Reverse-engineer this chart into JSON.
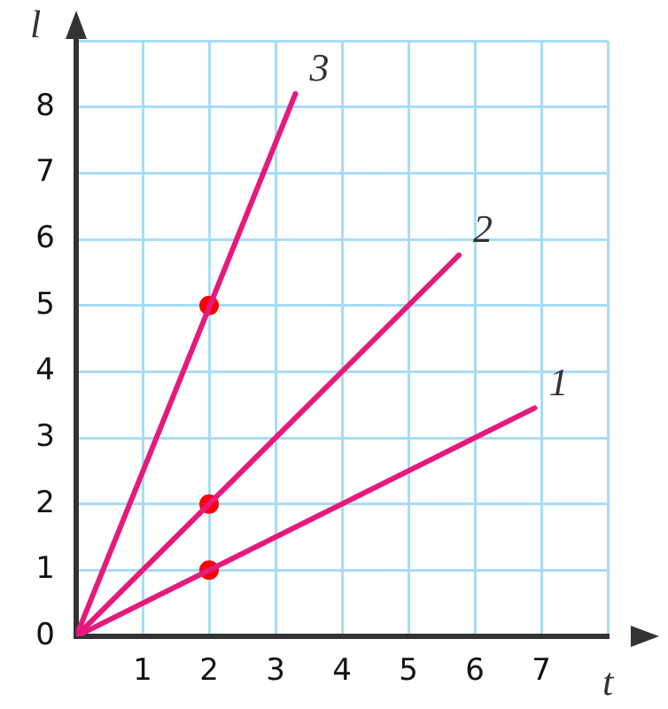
{
  "chart_data": {
    "type": "line",
    "xlabel": "t",
    "ylabel": "l",
    "xlim": [
      0,
      8
    ],
    "ylim": [
      0,
      9
    ],
    "xticks": [
      {
        "value": 0,
        "label": null
      },
      1,
      2,
      3,
      4,
      5,
      6,
      7,
      {
        "value": 8,
        "label": null
      }
    ],
    "yticks": [
      0,
      1,
      2,
      3,
      4,
      5,
      6,
      7,
      8,
      {
        "value": 9,
        "label": null
      }
    ],
    "grid": true,
    "legend": false,
    "marker": "none",
    "line_style": "solid",
    "series": [
      {
        "name": "1",
        "type": "line",
        "color": "#e6197d",
        "x": [
          0,
          6.9
        ],
        "values": [
          0,
          3.45
        ]
      },
      {
        "name": "2",
        "type": "line",
        "color": "#e6197d",
        "x": [
          0,
          5.76
        ],
        "values": [
          0,
          5.76
        ]
      },
      {
        "name": "3",
        "type": "line",
        "color": "#e6197d",
        "x": [
          0,
          3.3
        ],
        "values": [
          0,
          8.2
        ]
      },
      {
        "type": "scatter",
        "color": "#ff0000",
        "marker": "circle",
        "x": [
          2,
          2,
          2
        ],
        "values": [
          1,
          2,
          5
        ]
      }
    ]
  }
}
